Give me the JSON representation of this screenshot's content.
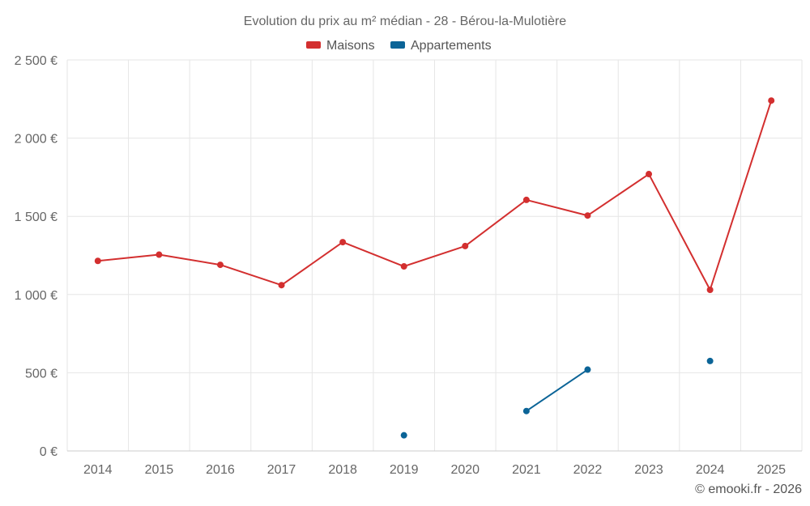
{
  "chart_data": {
    "type": "line",
    "title": "Evolution du prix au m² médian - 28 - Bérou-la-Mulotière",
    "categories": [
      "2014",
      "2015",
      "2016",
      "2017",
      "2018",
      "2019",
      "2020",
      "2021",
      "2022",
      "2023",
      "2024",
      "2025"
    ],
    "series": [
      {
        "name": "Maisons",
        "color": "#d32f2f",
        "values": [
          1215,
          1255,
          1190,
          1060,
          1335,
          1180,
          1310,
          1605,
          1505,
          1770,
          1030,
          2240
        ]
      },
      {
        "name": "Appartements",
        "color": "#0b6497",
        "values": [
          null,
          null,
          null,
          null,
          null,
          100,
          null,
          255,
          520,
          null,
          575,
          null
        ]
      }
    ],
    "ylim": [
      0,
      2500
    ],
    "yticks": [
      0,
      500,
      1000,
      1500,
      2000,
      2500
    ],
    "ytick_labels": [
      "0 €",
      "500 €",
      "1 000 €",
      "1 500 €",
      "2 000 €",
      "2 500 €"
    ],
    "xlabel": "",
    "ylabel": "",
    "grid": true,
    "legend_position": "top-center"
  },
  "credit": "© emooki.fr - 2026"
}
